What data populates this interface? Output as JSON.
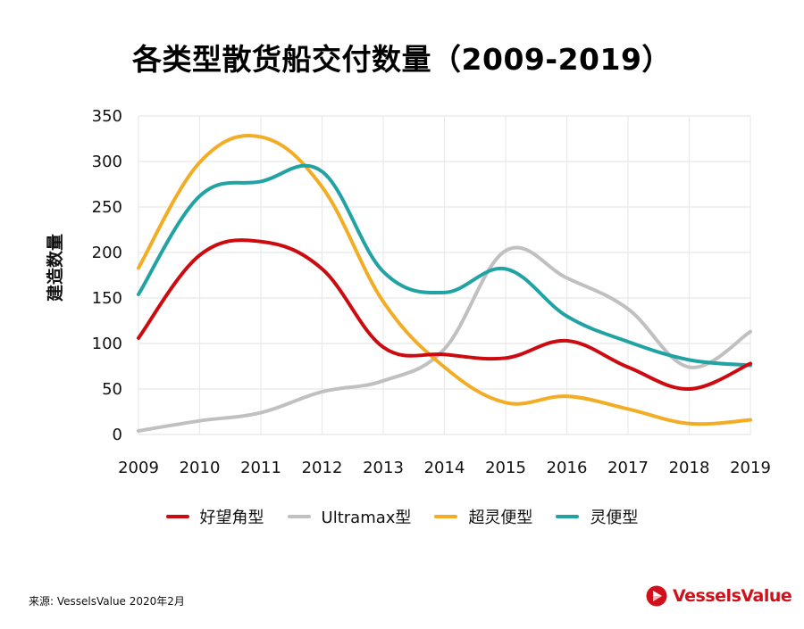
{
  "chart_data": {
    "type": "line",
    "title": "各类型散货船交付数量（2009-2019）",
    "xlabel": "",
    "ylabel": "建造数量",
    "x": [
      "2009",
      "2010",
      "2011",
      "2012",
      "2013",
      "2014",
      "2015",
      "2016",
      "2017",
      "2018",
      "2019"
    ],
    "ylim": [
      0,
      350
    ],
    "yticks": [
      0,
      50,
      100,
      150,
      200,
      250,
      300,
      350
    ],
    "grid": true,
    "smooth": true,
    "legend_position": "bottom",
    "series": [
      {
        "name": "好望角型",
        "color": "#cc0a0f",
        "values": [
          106,
          197,
          212,
          182,
          96,
          88,
          84,
          103,
          74,
          50,
          78
        ]
      },
      {
        "name": "Ultramax型",
        "color": "#c0c0c0",
        "values": [
          4,
          15,
          24,
          47,
          59,
          94,
          202,
          172,
          138,
          74,
          113
        ]
      },
      {
        "name": "超灵便型",
        "color": "#f2ad24",
        "values": [
          183,
          299,
          327,
          272,
          146,
          74,
          35,
          42,
          28,
          12,
          16
        ]
      },
      {
        "name": "灵便型",
        "color": "#22a3a3",
        "values": [
          154,
          262,
          278,
          289,
          179,
          156,
          182,
          130,
          102,
          82,
          76
        ]
      }
    ]
  },
  "footer": {
    "source": "来源: VesselsValue 2020年2月",
    "logo_text": "VesselsValue",
    "logo_color": "#d0101a"
  }
}
